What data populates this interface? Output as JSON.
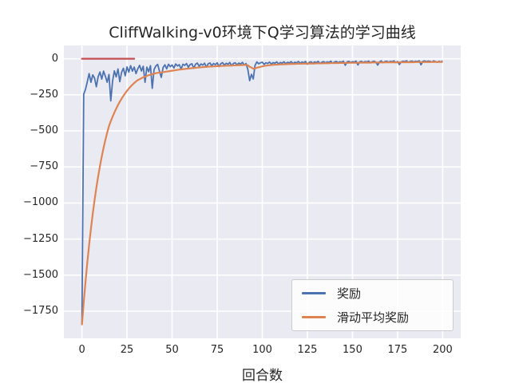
{
  "title": "CliffWalking-v0环境下Q学习算法的学习曲线",
  "colors": {
    "figure_background": "#ffffff",
    "axes_background": "#eaeaf2",
    "grid": "#ffffff",
    "text": "#262626",
    "reward_line": "#4C72B0",
    "ma_reward_line": "#DD8452",
    "annotation_line": "#C44E52"
  },
  "chart_data": {
    "type": "line",
    "title": "CliffWalking-v0环境下Q学习算法的学习曲线",
    "xlabel": "回合数",
    "ylabel": "",
    "grid": true,
    "legend_position": "lower right",
    "xlim": [
      -10,
      210
    ],
    "ylim": [
      -1938,
      92
    ],
    "xticks": [
      0,
      25,
      50,
      75,
      100,
      125,
      150,
      175,
      200
    ],
    "xtick_labels": [
      "0",
      "25",
      "50",
      "75",
      "100",
      "125",
      "150",
      "175",
      "200"
    ],
    "yticks": [
      0,
      -250,
      -500,
      -750,
      -1000,
      -1250,
      -1500,
      -1750
    ],
    "ytick_labels": [
      "0",
      "−250",
      "−500",
      "−750",
      "−1000",
      "−1250",
      "−1500",
      "−1750"
    ],
    "x_start": 0,
    "x_step": 1,
    "annotation_line": {
      "y": 0,
      "x_start": 0,
      "x_end": 29,
      "color": "#C44E52"
    },
    "series": [
      {
        "name": "奖励",
        "color": "#4C72B0",
        "values": [
          -1846,
          -246,
          -212,
          -159,
          -103,
          -163,
          -112,
          -134,
          -194,
          -124,
          -92,
          -141,
          -86,
          -121,
          -163,
          -109,
          -292,
          -155,
          -84,
          -126,
          -71,
          -159,
          -94,
          -66,
          -118,
          -57,
          -92,
          -48,
          -86,
          -58,
          -103,
          -69,
          -46,
          -85,
          -52,
          -163,
          -58,
          -90,
          -48,
          -205,
          -75,
          -50,
          -39,
          -86,
          -129,
          -61,
          -42,
          -70,
          -38,
          -55,
          -43,
          -64,
          -36,
          -50,
          -41,
          -72,
          -38,
          -46,
          -33,
          -59,
          -40,
          -35,
          -66,
          -38,
          -30,
          -52,
          -36,
          -44,
          -31,
          -58,
          -35,
          -29,
          -49,
          -33,
          -41,
          -28,
          -54,
          -34,
          -27,
          -45,
          -31,
          -38,
          -26,
          -49,
          -32,
          -28,
          -42,
          -30,
          -36,
          -25,
          -44,
          -33,
          -75,
          -152,
          -108,
          -140,
          -45,
          -22,
          -35,
          -28,
          -24,
          -39,
          -28,
          -33,
          -23,
          -37,
          -27,
          -31,
          -22,
          -36,
          -26,
          -30,
          -21,
          -34,
          -25,
          -29,
          -20,
          -33,
          -24,
          -28,
          -19,
          -31,
          -23,
          -27,
          -19,
          -38,
          -25,
          -21,
          -30,
          -22,
          -26,
          -18,
          -33,
          -24,
          -20,
          -28,
          -22,
          -25,
          -17,
          -31,
          -23,
          -19,
          -27,
          -21,
          -24,
          -17,
          -45,
          -22,
          -18,
          -26,
          -20,
          -23,
          -16,
          -43,
          -21,
          -18,
          -25,
          -19,
          -22,
          -16,
          -28,
          -20,
          -17,
          -24,
          -44,
          -21,
          -15,
          -27,
          -19,
          -17,
          -23,
          -18,
          -20,
          -15,
          -26,
          -19,
          -40,
          -22,
          -17,
          -19,
          -14,
          -25,
          -18,
          -16,
          -21,
          -17,
          -19,
          -14,
          -42,
          -18,
          -15,
          -20,
          -16,
          -18,
          -22,
          -15,
          -19,
          -25,
          -17,
          -21,
          -15
        ]
      },
      {
        "name": "滑动平均奖励",
        "color": "#DD8452",
        "values": [
          -1846,
          -1690,
          -1545,
          -1412,
          -1290,
          -1178,
          -1075,
          -981,
          -895,
          -816,
          -744,
          -678,
          -618,
          -563,
          -513,
          -467,
          -433,
          -402,
          -373,
          -346,
          -321,
          -298,
          -277,
          -257,
          -239,
          -222,
          -207,
          -193,
          -180,
          -168,
          -157,
          -148,
          -142,
          -135,
          -129,
          -124,
          -119,
          -114,
          -110,
          -106,
          -103,
          -100,
          -98,
          -96,
          -95,
          -93,
          -91,
          -89,
          -87,
          -85,
          -83,
          -81,
          -79,
          -77,
          -75,
          -74,
          -72,
          -71,
          -69,
          -68,
          -67,
          -65,
          -64,
          -63,
          -61,
          -60,
          -59,
          -58,
          -57,
          -56,
          -55,
          -54,
          -54,
          -53,
          -52,
          -51,
          -51,
          -50,
          -49,
          -49,
          -48,
          -48,
          -47,
          -47,
          -46,
          -46,
          -45,
          -45,
          -44,
          -44,
          -43,
          -43,
          -45,
          -56,
          -61,
          -69,
          -67,
          -62,
          -59,
          -56,
          -53,
          -50,
          -48,
          -46,
          -45,
          -43,
          -42,
          -41,
          -41,
          -40,
          -39,
          -39,
          -38,
          -38,
          -37,
          -37,
          -36,
          -36,
          -36,
          -35,
          -35,
          -35,
          -34,
          -34,
          -34,
          -34,
          -33,
          -33,
          -33,
          -33,
          -32,
          -32,
          -32,
          -32,
          -31,
          -31,
          -31,
          -31,
          -30,
          -30,
          -30,
          -30,
          -30,
          -29,
          -29,
          -29,
          -29,
          -29,
          -28,
          -28,
          -28,
          -28,
          -28,
          -28,
          -27,
          -27,
          -27,
          -27,
          -27,
          -27,
          -27,
          -26,
          -26,
          -26,
          -26,
          -26,
          -26,
          -26,
          -25,
          -25,
          -25,
          -25,
          -25,
          -25,
          -25,
          -25,
          -25,
          -24,
          -24,
          -24,
          -24,
          -24,
          -24,
          -24,
          -24,
          -23,
          -23,
          -23,
          -23,
          -23,
          -23,
          -23,
          -23,
          -23,
          -22,
          -22,
          -22,
          -22,
          -22,
          -22,
          -22
        ]
      }
    ]
  }
}
